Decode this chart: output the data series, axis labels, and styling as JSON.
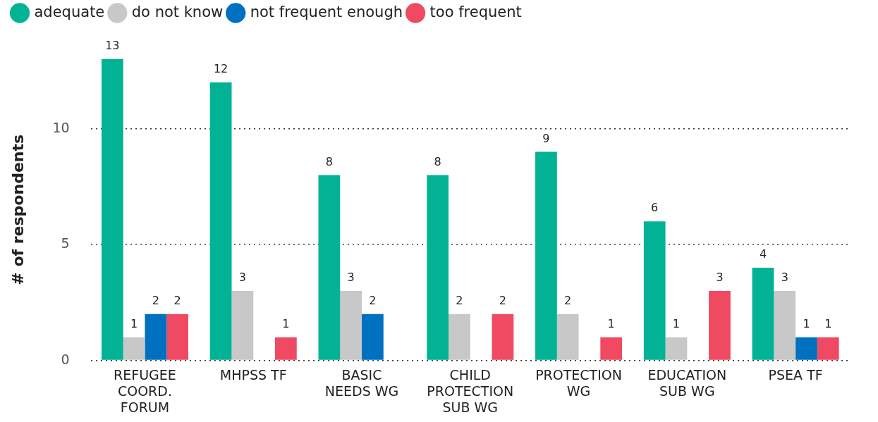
{
  "chart_data": {
    "type": "bar",
    "ylabel": "# of respondents",
    "categories": [
      "REFUGEE COORD. FORUM",
      "MHPSS TF",
      "BASIC NEEDS WG",
      "CHILD PROTECTION SUB WG",
      "PROTECTION WG",
      "EDUCATION SUB WG",
      "PSEA TF"
    ],
    "series": [
      {
        "name": "adequate",
        "color": "#01b294",
        "values": [
          13,
          12,
          8,
          8,
          9,
          6,
          4
        ]
      },
      {
        "name": "do not know",
        "color": "#c8c8c8",
        "values": [
          1,
          3,
          3,
          2,
          2,
          1,
          3
        ]
      },
      {
        "name": "not frequent enough",
        "color": "#0070c0",
        "values": [
          2,
          null,
          2,
          null,
          null,
          null,
          1
        ]
      },
      {
        "name": "too frequent",
        "color": "#ef4a61",
        "values": [
          2,
          1,
          null,
          2,
          1,
          3,
          1
        ]
      }
    ],
    "ylim": [
      0,
      13
    ],
    "yticks": [
      0,
      5,
      10
    ],
    "grid": "y",
    "legend": "top left",
    "data_labels": true
  }
}
